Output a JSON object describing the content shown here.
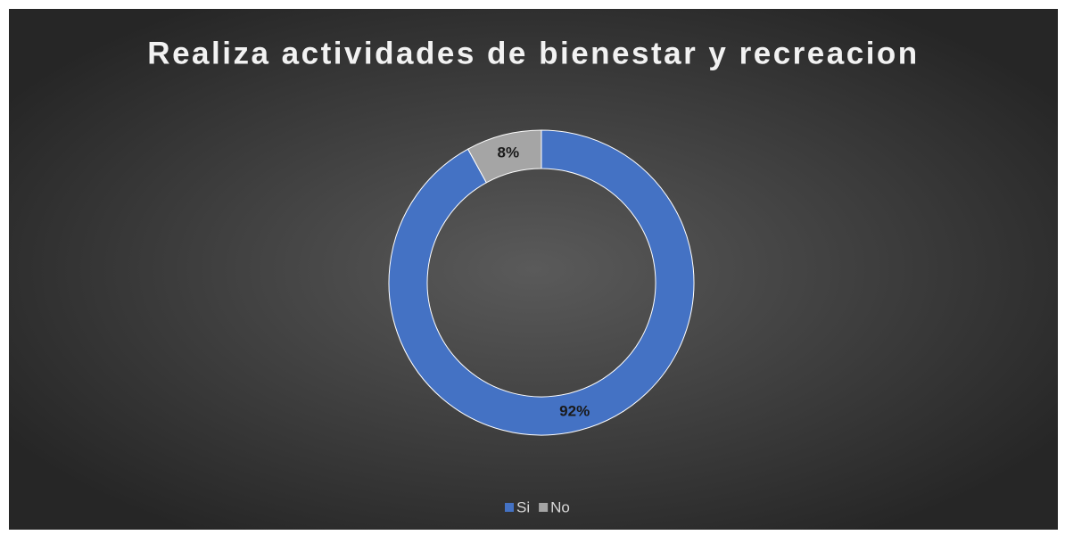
{
  "chart_data": {
    "type": "pie",
    "title": "Realiza actividades de bienestar y recreacion",
    "categories": [
      "Si",
      "No"
    ],
    "values": [
      92,
      8
    ],
    "value_labels": [
      "92%",
      "8%"
    ],
    "colors": [
      "#4472c4",
      "#a5a5a5"
    ],
    "donut": true,
    "legend": "bottom"
  }
}
